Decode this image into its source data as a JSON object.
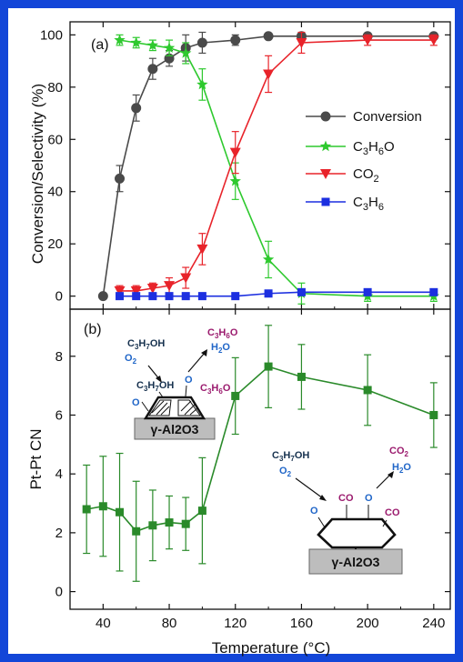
{
  "chart_data": [
    {
      "panel_label": "(a)",
      "type": "line",
      "xlabel": "Temperature (°C)",
      "ylabel": "Conversion/Selectivity (%)",
      "xlim": [
        20,
        250
      ],
      "ylim": [
        -5,
        105
      ],
      "x_ticks": [
        40,
        80,
        120,
        160,
        200,
        240
      ],
      "y_ticks": [
        0,
        20,
        40,
        60,
        80,
        100
      ],
      "legend_position": "right",
      "series": [
        {
          "name": "Conversion",
          "color": "#4a4a4a",
          "marker": "circle",
          "x": [
            40,
            50,
            60,
            70,
            80,
            90,
            100,
            120,
            140,
            160,
            200,
            240
          ],
          "y": [
            0,
            45,
            72,
            87,
            91,
            95,
            97,
            98,
            99.5,
            99.5,
            99.5,
            99.5
          ],
          "err": [
            0,
            5,
            5,
            4,
            3,
            5,
            4,
            2,
            1,
            1,
            1,
            1
          ]
        },
        {
          "name": "C3H6O",
          "color": "#2ec92e",
          "marker": "star",
          "x": [
            50,
            60,
            70,
            80,
            90,
            100,
            120,
            140,
            160,
            200,
            240
          ],
          "y": [
            98,
            97,
            96,
            95,
            93,
            81,
            44,
            14,
            1,
            0,
            0
          ],
          "err": [
            2,
            2,
            2,
            3,
            4,
            6,
            7,
            7,
            4,
            2,
            2
          ]
        },
        {
          "name": "CO2",
          "color": "#e8232a",
          "marker": "triangle-down",
          "x": [
            50,
            60,
            70,
            80,
            90,
            100,
            120,
            140,
            160,
            200,
            240
          ],
          "y": [
            2,
            2,
            3,
            4,
            7,
            18,
            55,
            85,
            97,
            98,
            98
          ],
          "err": [
            2,
            2,
            2,
            3,
            4,
            6,
            8,
            7,
            4,
            2,
            2
          ]
        },
        {
          "name": "C3H6",
          "color": "#1c2fe0",
          "marker": "square",
          "x": [
            50,
            60,
            70,
            80,
            90,
            100,
            120,
            140,
            160,
            200,
            240
          ],
          "y": [
            0,
            0,
            0,
            0,
            0,
            0,
            0,
            1,
            1.5,
            1.5,
            1.5
          ],
          "err": [
            1,
            1,
            1,
            1,
            1,
            1,
            1,
            1,
            1,
            1,
            1
          ]
        }
      ],
      "legend_labels": [
        {
          "main": "Conversion",
          "subs": []
        },
        {
          "main": "C",
          "subs": [
            "3",
            "H",
            "6",
            "O"
          ]
        },
        {
          "main": "CO",
          "subs": [
            "2"
          ]
        },
        {
          "main": "C",
          "subs": [
            "3",
            "H",
            "6"
          ]
        }
      ]
    },
    {
      "panel_label": "(b)",
      "type": "line",
      "xlabel": "Temperature (°C)",
      "ylabel": "Pt-Pt CN",
      "xlim": [
        20,
        250
      ],
      "ylim": [
        -0.6,
        9.6
      ],
      "x_ticks": [
        40,
        80,
        120,
        160,
        200,
        240
      ],
      "y_ticks": [
        0,
        2,
        4,
        6,
        8
      ],
      "series": [
        {
          "name": "Pt-Pt CN",
          "color": "#2a8a2a",
          "marker": "square",
          "x": [
            30,
            40,
            50,
            60,
            70,
            80,
            90,
            100,
            120,
            140,
            160,
            200,
            240
          ],
          "y": [
            2.8,
            2.9,
            2.7,
            2.05,
            2.25,
            2.35,
            2.3,
            2.75,
            6.65,
            7.65,
            7.3,
            6.85,
            6.0
          ],
          "err": [
            1.5,
            1.7,
            2.0,
            1.7,
            1.2,
            0.9,
            0.9,
            1.8,
            1.3,
            1.4,
            1.1,
            1.2,
            1.1
          ]
        }
      ]
    }
  ],
  "insets": {
    "left": {
      "reactants": [
        "C3H7OH",
        "O2"
      ],
      "products": [
        "C3H6O",
        "H2O"
      ],
      "adsorbed": [
        "C3H7OH",
        "O",
        "C3H6O"
      ],
      "support": "γ-Al2O3"
    },
    "right": {
      "reactants": [
        "C3H7OH",
        "O2"
      ],
      "products": [
        "CO2",
        "H2O"
      ],
      "adsorbed": [
        "O",
        "CO",
        "O",
        "CO"
      ],
      "support": "γ-Al2O3"
    }
  }
}
